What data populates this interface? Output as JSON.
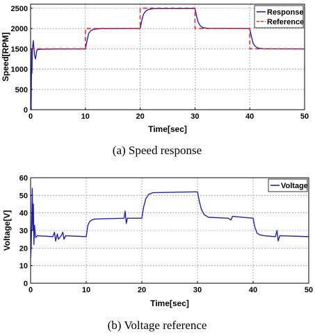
{
  "chart_data": [
    {
      "type": "line",
      "caption": "(a)  Speed  response",
      "xlabel": "Time[sec]",
      "ylabel": "Speed[RPM]",
      "xlim": [
        0,
        50
      ],
      "ylim": [
        0,
        2600
      ],
      "xticks": [
        0,
        10,
        20,
        30,
        40,
        50
      ],
      "yticks": [
        0,
        500,
        1000,
        1500,
        2000,
        2500
      ],
      "grid": true,
      "legend_position": "top-right",
      "series": [
        {
          "name": "Response",
          "color": "#1f1fbf",
          "style": "solid",
          "points": [
            [
              0,
              0
            ],
            [
              0.1,
              0
            ],
            [
              0.15,
              800
            ],
            [
              0.2,
              1500
            ],
            [
              0.25,
              900
            ],
            [
              0.3,
              1450
            ],
            [
              0.5,
              1700
            ],
            [
              0.7,
              1350
            ],
            [
              0.9,
              1250
            ],
            [
              1.1,
              1450
            ],
            [
              1.3,
              1480
            ],
            [
              2,
              1490
            ],
            [
              5,
              1495
            ],
            [
              10,
              1495
            ],
            [
              10.3,
              1700
            ],
            [
              10.6,
              1880
            ],
            [
              11,
              1950
            ],
            [
              11.5,
              1980
            ],
            [
              12.5,
              1995
            ],
            [
              17,
              2000
            ],
            [
              20,
              2000
            ],
            [
              20.3,
              2200
            ],
            [
              20.6,
              2350
            ],
            [
              21,
              2430
            ],
            [
              21.5,
              2470
            ],
            [
              22.5,
              2490
            ],
            [
              30,
              2495
            ],
            [
              30.3,
              2300
            ],
            [
              30.6,
              2150
            ],
            [
              31,
              2060
            ],
            [
              31.5,
              2020
            ],
            [
              32.5,
              2005
            ],
            [
              40,
              2000
            ],
            [
              40.3,
              1800
            ],
            [
              40.6,
              1640
            ],
            [
              41,
              1560
            ],
            [
              41.5,
              1520
            ],
            [
              42.5,
              1500
            ],
            [
              50,
              1495
            ]
          ]
        },
        {
          "name": "Reference",
          "color": "#ff2020",
          "style": "dashed",
          "points": [
            [
              0,
              1500
            ],
            [
              10,
              1500
            ],
            [
              10,
              2000
            ],
            [
              20,
              2000
            ],
            [
              20,
              2500
            ],
            [
              30,
              2500
            ],
            [
              30,
              2000
            ],
            [
              40,
              2000
            ],
            [
              40,
              1500
            ],
            [
              50,
              1500
            ]
          ]
        }
      ]
    },
    {
      "type": "line",
      "caption": "(b)  Voltage  reference",
      "xlabel": "Time[sec]",
      "ylabel": "Voltage[V]",
      "xlim": [
        0,
        50
      ],
      "ylim": [
        0,
        60
      ],
      "xticks": [
        0,
        10,
        20,
        30,
        40,
        50
      ],
      "yticks": [
        0,
        10,
        20,
        30,
        40,
        50,
        60
      ],
      "grid": true,
      "legend_position": "top-right",
      "series": [
        {
          "name": "Voltage",
          "color": "#1f1fbf",
          "style": "solid",
          "points": [
            [
              0,
              14
            ],
            [
              0.1,
              20
            ],
            [
              0.2,
              35
            ],
            [
              0.3,
              54
            ],
            [
              0.4,
              30
            ],
            [
              0.5,
              45
            ],
            [
              0.6,
              22
            ],
            [
              0.7,
              33
            ],
            [
              0.9,
              26
            ],
            [
              1.2,
              27
            ],
            [
              4,
              26.5
            ],
            [
              4.3,
              29
            ],
            [
              4.5,
              24
            ],
            [
              4.8,
              28
            ],
            [
              5,
              25
            ],
            [
              5.5,
              27
            ],
            [
              5.8,
              29
            ],
            [
              6,
              25
            ],
            [
              6.3,
              27
            ],
            [
              10,
              26.5
            ],
            [
              10.3,
              33
            ],
            [
              10.6,
              35
            ],
            [
              11,
              36
            ],
            [
              11.5,
              36.5
            ],
            [
              16.8,
              37
            ],
            [
              17,
              41
            ],
            [
              17.2,
              34
            ],
            [
              17.4,
              37
            ],
            [
              20,
              37
            ],
            [
              20.3,
              43
            ],
            [
              20.7,
              48
            ],
            [
              21.2,
              50.5
            ],
            [
              22,
              51.5
            ],
            [
              30,
              52
            ],
            [
              30.3,
              47
            ],
            [
              30.7,
              42
            ],
            [
              31.2,
              39
            ],
            [
              32,
              37.5
            ],
            [
              35.5,
              37
            ],
            [
              36,
              36
            ],
            [
              36.3,
              38
            ],
            [
              40,
              37
            ],
            [
              40.3,
              32
            ],
            [
              40.7,
              28.5
            ],
            [
              41.2,
              27.5
            ],
            [
              42,
              27
            ],
            [
              44,
              26.5
            ],
            [
              44.3,
              30
            ],
            [
              44.5,
              24
            ],
            [
              44.8,
              27
            ],
            [
              50,
              26.5
            ]
          ]
        }
      ]
    }
  ]
}
